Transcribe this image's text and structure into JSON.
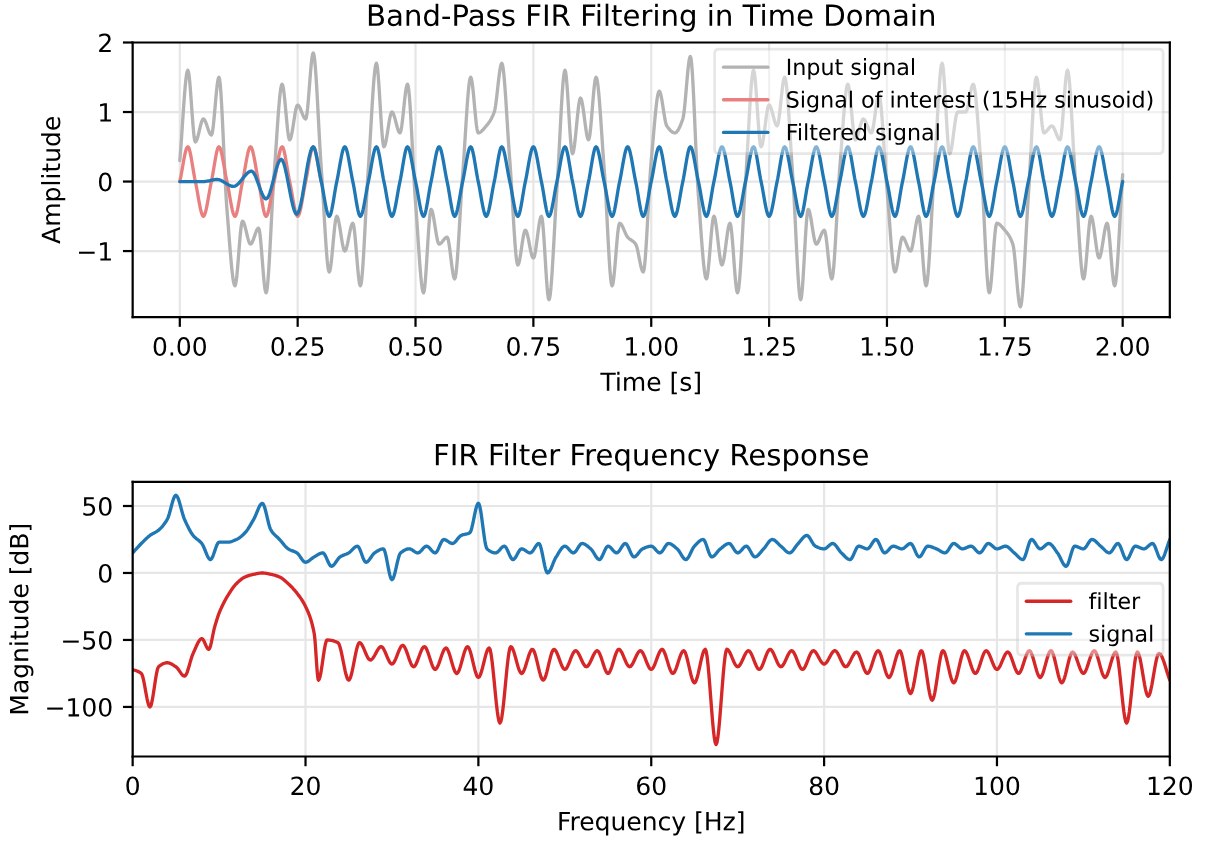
{
  "chart_data": [
    {
      "type": "line",
      "title": "Band-Pass FIR Filtering in Time Domain",
      "xlabel": "Time [s]",
      "ylabel": "Amplitude",
      "xlim": [
        -0.1,
        2.1
      ],
      "xticks": [
        {
          "value": 0,
          "label": "0.00"
        },
        {
          "value": 0.25,
          "label": "0.25"
        },
        {
          "value": 0.5,
          "label": "0.50"
        },
        {
          "value": 0.75,
          "label": "0.75"
        },
        {
          "value": 1,
          "label": "1.00"
        },
        {
          "value": 1.25,
          "label": "1.25"
        },
        {
          "value": 1.5,
          "label": "1.50"
        },
        {
          "value": 1.75,
          "label": "1.75"
        },
        {
          "value": 2,
          "label": "2.00"
        }
      ],
      "ylim": [
        -1.95,
        2
      ],
      "yticks": [
        {
          "value": -1,
          "label": "−1"
        },
        0,
        1,
        2
      ],
      "grid": true,
      "legend": "top right",
      "series": [
        {
          "name": "Input signal",
          "color": "#b3b3b3",
          "x": [
            0,
            0.017,
            0.033,
            0.05,
            0.067,
            0.083,
            0.1,
            0.117,
            0.133,
            0.15,
            0.167,
            0.183,
            0.2,
            0.217,
            0.233,
            0.25,
            0.267,
            0.283,
            0.3,
            0.317,
            0.333,
            0.35,
            0.367,
            0.383,
            0.4,
            0.417,
            0.433,
            0.45,
            0.467,
            0.483,
            0.5,
            0.517,
            0.533,
            0.55,
            0.567,
            0.583,
            0.6,
            0.617,
            0.633,
            0.65,
            0.667,
            0.683,
            0.7,
            0.717,
            0.733,
            0.75,
            0.767,
            0.783,
            0.8,
            0.817,
            0.833,
            0.85,
            0.867,
            0.883,
            0.9,
            0.917,
            0.933,
            0.95,
            0.967,
            0.983,
            1,
            1.017,
            1.033,
            1.05,
            1.067,
            1.083,
            1.1,
            1.117,
            1.133,
            1.15,
            1.167,
            1.183,
            1.2,
            1.217,
            1.233,
            1.25,
            1.267,
            1.283,
            1.3,
            1.317,
            1.333,
            1.35,
            1.367,
            1.383,
            1.4,
            1.417,
            1.433,
            1.45,
            1.467,
            1.483,
            1.5,
            1.517,
            1.533,
            1.55,
            1.567,
            1.583,
            1.6,
            1.617,
            1.633,
            1.65,
            1.667,
            1.683,
            1.7,
            1.717,
            1.733,
            1.75,
            1.767,
            1.783,
            1.8,
            1.817,
            1.833,
            1.85,
            1.867,
            1.883,
            1.9,
            1.917,
            1.933,
            1.95,
            1.967,
            1.983,
            2
          ],
          "values": [
            0.3,
            1.6,
            0.57,
            0.9,
            0.67,
            1.5,
            -0.4,
            -1.5,
            -0.57,
            -0.9,
            -0.67,
            -1.6,
            0.1,
            1.4,
            0.6,
            1.1,
            0.9,
            1.85,
            0.2,
            -1.3,
            -0.5,
            -1.0,
            -0.6,
            -1.5,
            0.2,
            1.7,
            0.5,
            1.0,
            0.7,
            1.4,
            -0.3,
            -1.6,
            -0.4,
            -0.9,
            -0.8,
            -1.4,
            0.1,
            1.5,
            0.7,
            0.8,
            1.0,
            1.7,
            0.3,
            -1.2,
            -0.7,
            -1.1,
            -0.5,
            -1.7,
            -0.1,
            1.6,
            0.4,
            1.2,
            0.6,
            1.5,
            0.2,
            -1.5,
            -0.6,
            -0.8,
            -0.9,
            -1.3,
            0.3,
            1.3,
            0.8,
            0.7,
            0.9,
            1.8,
            -0.2,
            -1.4,
            -0.5,
            -1.2,
            -0.6,
            -1.6,
            0.0,
            1.6,
            0.5,
            1.1,
            0.8,
            1.5,
            0.1,
            -1.7,
            -0.4,
            -0.9,
            -0.7,
            -1.4,
            0.2,
            1.4,
            0.6,
            0.9,
            0.7,
            1.25,
            -0.1,
            -1.3,
            -0.8,
            -1.0,
            -0.5,
            -1.5,
            0.1,
            1.7,
            0.4,
            1.0,
            1.0,
            1.4,
            0.2,
            -1.6,
            -0.6,
            -0.7,
            -0.9,
            -1.8,
            -0.2,
            1.5,
            0.7,
            0.8,
            0.6,
            1.6,
            0.0,
            -1.4,
            -0.5,
            -1.1,
            -0.6,
            -1.5,
            0.1
          ]
        },
        {
          "name": "Signal of interest (15Hz sinusoid)",
          "color": "#e88080",
          "x": [
            0,
            0.017,
            0.033,
            0.05,
            0.067,
            0.083,
            0.1,
            0.117,
            0.133,
            0.15,
            0.167,
            0.183,
            0.2,
            0.217,
            0.233,
            0.25,
            0.267,
            0.283,
            0.3
          ],
          "values": [
            0,
            0.5,
            0,
            -0.5,
            0,
            0.5,
            0,
            -0.5,
            0,
            0.5,
            0,
            -0.5,
            0,
            0.5,
            0,
            -0.5,
            0,
            0.5,
            0
          ]
        },
        {
          "name": "Filtered signal",
          "color": "#1f77b4",
          "x": [
            0,
            0.05,
            0.079,
            0.114,
            0.152,
            0.183,
            0.215,
            0.248,
            0.283,
            0.3,
            0.317,
            0.333,
            0.35,
            0.367,
            0.383,
            0.4,
            0.417,
            0.433,
            0.45,
            0.467,
            0.483,
            0.5,
            0.517,
            0.533,
            0.55,
            0.567,
            0.583,
            0.6,
            0.617,
            0.633,
            0.65,
            0.667,
            0.683,
            0.7,
            0.717,
            0.733,
            0.75,
            0.767,
            0.783,
            0.8,
            0.817,
            0.833,
            0.85,
            0.867,
            0.883,
            0.9,
            0.917,
            0.933,
            0.95,
            0.967,
            0.983,
            1,
            1.017,
            1.033,
            1.05,
            1.067,
            1.083,
            1.1,
            1.117,
            1.133,
            1.15,
            1.167,
            1.183,
            1.2,
            1.217,
            1.233,
            1.25,
            1.267,
            1.283,
            1.3,
            1.317,
            1.333,
            1.35,
            1.367,
            1.383,
            1.4,
            1.417,
            1.433,
            1.45,
            1.467,
            1.483,
            1.5,
            1.517,
            1.533,
            1.55,
            1.567,
            1.583,
            1.6,
            1.617,
            1.633,
            1.65,
            1.667,
            1.683,
            1.7,
            1.717,
            1.733,
            1.75,
            1.767,
            1.783,
            1.8,
            1.817,
            1.833,
            1.85,
            1.867,
            1.883,
            1.9,
            1.917,
            1.933,
            1.95,
            1.967,
            1.983,
            2
          ],
          "values": [
            0,
            0,
            0.03,
            -0.07,
            0.15,
            -0.25,
            0.32,
            -0.47,
            0.5,
            0,
            -0.5,
            0,
            0.5,
            0,
            -0.5,
            0,
            0.5,
            0,
            -0.5,
            0,
            0.5,
            0,
            -0.5,
            0,
            0.5,
            0,
            -0.5,
            0,
            0.5,
            0,
            -0.5,
            0,
            0.5,
            0,
            -0.5,
            0,
            0.5,
            0,
            -0.5,
            0,
            0.5,
            0,
            -0.5,
            0,
            0.5,
            0,
            -0.5,
            0,
            0.5,
            0,
            -0.5,
            0,
            0.5,
            0,
            -0.5,
            0,
            0.5,
            0,
            -0.5,
            0,
            0.5,
            0,
            -0.5,
            0,
            0.5,
            0,
            -0.5,
            0,
            0.5,
            0,
            -0.5,
            0,
            0.5,
            0,
            -0.5,
            0,
            0.5,
            0,
            -0.5,
            0,
            0.5,
            0,
            -0.5,
            0,
            0.5,
            0,
            -0.5,
            0,
            0.5,
            0,
            -0.5,
            0,
            0.5,
            0,
            -0.5,
            0,
            0.5,
            0,
            -0.5,
            0,
            0.5,
            0,
            -0.5,
            0,
            0.5,
            0,
            -0.5,
            0,
            0.5,
            0,
            -0.5,
            0
          ]
        }
      ]
    },
    {
      "type": "line",
      "title": "FIR Filter Frequency Response",
      "xlabel": "Frequency [Hz]",
      "ylabel": "Magnitude [dB]",
      "xlim": [
        0,
        120
      ],
      "xticks": [
        0,
        20,
        40,
        60,
        80,
        100,
        120
      ],
      "ylim": [
        -137,
        68
      ],
      "yticks": [
        {
          "value": -100,
          "label": "−100"
        },
        {
          "value": -50,
          "label": "−50"
        },
        0,
        50
      ],
      "grid": true,
      "legend": "right",
      "series": [
        {
          "name": "filter",
          "color": "#d62728",
          "x": [
            0,
            1,
            2,
            3,
            4,
            5,
            6,
            7,
            8,
            8.8,
            9.5,
            10,
            11,
            12,
            13,
            14,
            15,
            16,
            17,
            18,
            19,
            20,
            21,
            21.5,
            22.5,
            23.75,
            25,
            26.25,
            27.5,
            28.75,
            30,
            31.25,
            32.5,
            33.75,
            35,
            36.25,
            37.5,
            38.75,
            40,
            41.25,
            42.5,
            43.75,
            45,
            46.25,
            47.5,
            48.75,
            50,
            51.25,
            52.5,
            53.75,
            55,
            56.25,
            57.5,
            58.75,
            60,
            61.25,
            62.5,
            63.75,
            65,
            66.25,
            67.5,
            68.75,
            70,
            71.25,
            72.5,
            73.75,
            75,
            76.25,
            77.5,
            78.75,
            80,
            81.25,
            82.5,
            83.75,
            85,
            86.25,
            87.5,
            88.75,
            90,
            91.25,
            92.5,
            93.75,
            95,
            96.25,
            97.5,
            98.75,
            100,
            101.25,
            102.5,
            103.75,
            105,
            106.25,
            107.5,
            108.75,
            110,
            111.25,
            112.5,
            113.75,
            115,
            116.25,
            117.5,
            118.75,
            120
          ],
          "values": [
            -72,
            -75,
            -100,
            -70,
            -67,
            -70,
            -77,
            -60,
            -49,
            -57,
            -40,
            -30,
            -17,
            -8,
            -3,
            -1,
            0,
            -1,
            -3,
            -8,
            -15,
            -25,
            -45,
            -80,
            -50,
            -52,
            -80,
            -52,
            -65,
            -55,
            -68,
            -54,
            -70,
            -55,
            -72,
            -56,
            -75,
            -55,
            -78,
            -56,
            -112,
            -55,
            -75,
            -57,
            -80,
            -57,
            -72,
            -58,
            -70,
            -58,
            -75,
            -57,
            -70,
            -58,
            -72,
            -57,
            -75,
            -58,
            -82,
            -57,
            -128,
            -57,
            -70,
            -58,
            -72,
            -57,
            -70,
            -58,
            -72,
            -58,
            -68,
            -58,
            -70,
            -59,
            -75,
            -58,
            -78,
            -58,
            -90,
            -58,
            -95,
            -58,
            -82,
            -58,
            -75,
            -58,
            -72,
            -59,
            -75,
            -58,
            -78,
            -58,
            -82,
            -59,
            -75,
            -58,
            -78,
            -59,
            -112,
            -59,
            -92,
            -60,
            -80
          ]
        },
        {
          "name": "signal",
          "color": "#1f77b4",
          "x": [
            0,
            1,
            2,
            3,
            4,
            5,
            6,
            7,
            8,
            9,
            10,
            11,
            12,
            13,
            14,
            15,
            16,
            17,
            18,
            19,
            20,
            21,
            22,
            23,
            24,
            25,
            26,
            27,
            28,
            29,
            30,
            31,
            32,
            33,
            34,
            35,
            36,
            37,
            38,
            39,
            40,
            41,
            42,
            43,
            44,
            45,
            46,
            47,
            48,
            49,
            50,
            51,
            52,
            53,
            54,
            55,
            56,
            57,
            58,
            59,
            60,
            61,
            62,
            63,
            64,
            65,
            66,
            67,
            68,
            69,
            70,
            71,
            72,
            73,
            74,
            75,
            76,
            77,
            78,
            79,
            80,
            81,
            82,
            83,
            84,
            85,
            86,
            87,
            88,
            89,
            90,
            91,
            92,
            93,
            94,
            95,
            96,
            97,
            98,
            99,
            100,
            101,
            102,
            103,
            104,
            105,
            106,
            107,
            108,
            109,
            110,
            111,
            112,
            113,
            114,
            115,
            116,
            117,
            118,
            119,
            120
          ],
          "values": [
            15,
            22,
            28,
            32,
            40,
            58,
            40,
            28,
            22,
            10,
            23,
            23,
            25,
            30,
            40,
            52,
            32,
            25,
            18,
            15,
            8,
            12,
            15,
            5,
            12,
            15,
            20,
            8,
            15,
            18,
            -5,
            15,
            18,
            15,
            20,
            15,
            25,
            22,
            28,
            30,
            52,
            18,
            15,
            20,
            10,
            18,
            15,
            22,
            0,
            12,
            20,
            15,
            22,
            18,
            10,
            20,
            15,
            22,
            12,
            18,
            20,
            15,
            22,
            18,
            10,
            20,
            25,
            12,
            18,
            22,
            15,
            20,
            12,
            18,
            25,
            20,
            15,
            22,
            28,
            20,
            18,
            22,
            15,
            10,
            20,
            18,
            25,
            15,
            20,
            18,
            22,
            12,
            20,
            18,
            15,
            22,
            18,
            20,
            15,
            22,
            18,
            20,
            15,
            10,
            25,
            18,
            22,
            15,
            5,
            20,
            18,
            25,
            20,
            15,
            22,
            10,
            20,
            18,
            22,
            10,
            25
          ]
        }
      ]
    }
  ]
}
